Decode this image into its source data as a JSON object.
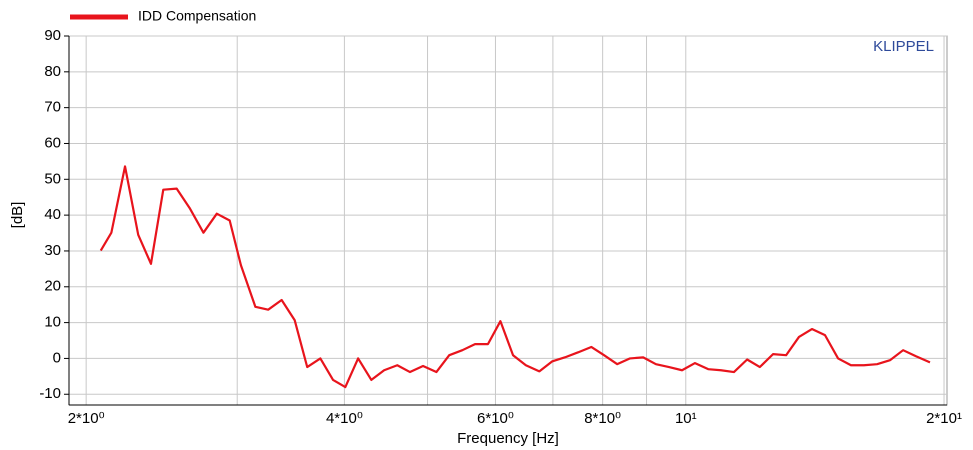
{
  "chart_data": {
    "type": "line",
    "x_label": "Frequency  [Hz]",
    "y_label": "[dB]",
    "annotation": "KLIPPEL",
    "x_scale": "log",
    "grid": true,
    "legend": "top-left",
    "xlim": [
      1.91,
      20.16
    ],
    "ylim": [
      -13,
      90
    ],
    "xticks": [
      {
        "value": 2,
        "label": "2*10⁰"
      },
      {
        "value": 4,
        "label": "4*10⁰"
      },
      {
        "value": 6,
        "label": "6*10⁰"
      },
      {
        "value": 8,
        "label": "8*10⁰"
      },
      {
        "value": 10,
        "label": "10¹"
      },
      {
        "value": 20,
        "label": "2*10¹"
      }
    ],
    "x_minor_grid": [
      3,
      5,
      7,
      9
    ],
    "yticks": [
      -10,
      0,
      10,
      20,
      30,
      40,
      50,
      60,
      70,
      80,
      90
    ],
    "series": [
      {
        "name": "IDD Compensation",
        "color": "#e8141c",
        "x": [
          2.08,
          2.14,
          2.22,
          2.3,
          2.38,
          2.46,
          2.55,
          2.64,
          2.74,
          2.84,
          2.94,
          3.03,
          3.15,
          3.26,
          3.38,
          3.5,
          3.62,
          3.75,
          3.88,
          4.01,
          4.15,
          4.3,
          4.45,
          4.61,
          4.77,
          4.94,
          5.12,
          5.3,
          5.49,
          5.68,
          5.88,
          6.08,
          6.29,
          6.51,
          6.75,
          6.99,
          7.23,
          7.49,
          7.76,
          8.03,
          8.32,
          8.61,
          8.92,
          9.23,
          9.56,
          9.9,
          10.25,
          10.62,
          10.99,
          11.38,
          11.79,
          12.2,
          12.64,
          13.09,
          13.55,
          14.03,
          14.53,
          15.05,
          15.58,
          16.13,
          16.71,
          17.3,
          17.92,
          18.55,
          19.26
        ],
        "values": [
          30.1,
          35.1,
          53.6,
          34.5,
          26.4,
          47.1,
          47.4,
          42.0,
          35.1,
          40.4,
          38.5,
          26.0,
          14.4,
          13.6,
          16.3,
          10.7,
          -2.4,
          0,
          -6,
          -8,
          0,
          -6,
          -3.3,
          -1.9,
          -3.8,
          -2.1,
          -3.8,
          0.9,
          2.3,
          4,
          4,
          10.4,
          0.9,
          -1.9,
          -3.6,
          -0.8,
          0.3,
          1.7,
          3.2,
          0.9,
          -1.6,
          0,
          0.3,
          -1.6,
          -2.4,
          -3.3,
          -1.3,
          -3,
          -3.3,
          -3.8,
          -0.3,
          -2.4,
          1.2,
          0.9,
          6,
          8.2,
          6.5,
          0,
          -1.9,
          -1.9,
          -1.6,
          -0.5,
          2.3,
          0.6,
          -1.1
        ]
      }
    ]
  }
}
